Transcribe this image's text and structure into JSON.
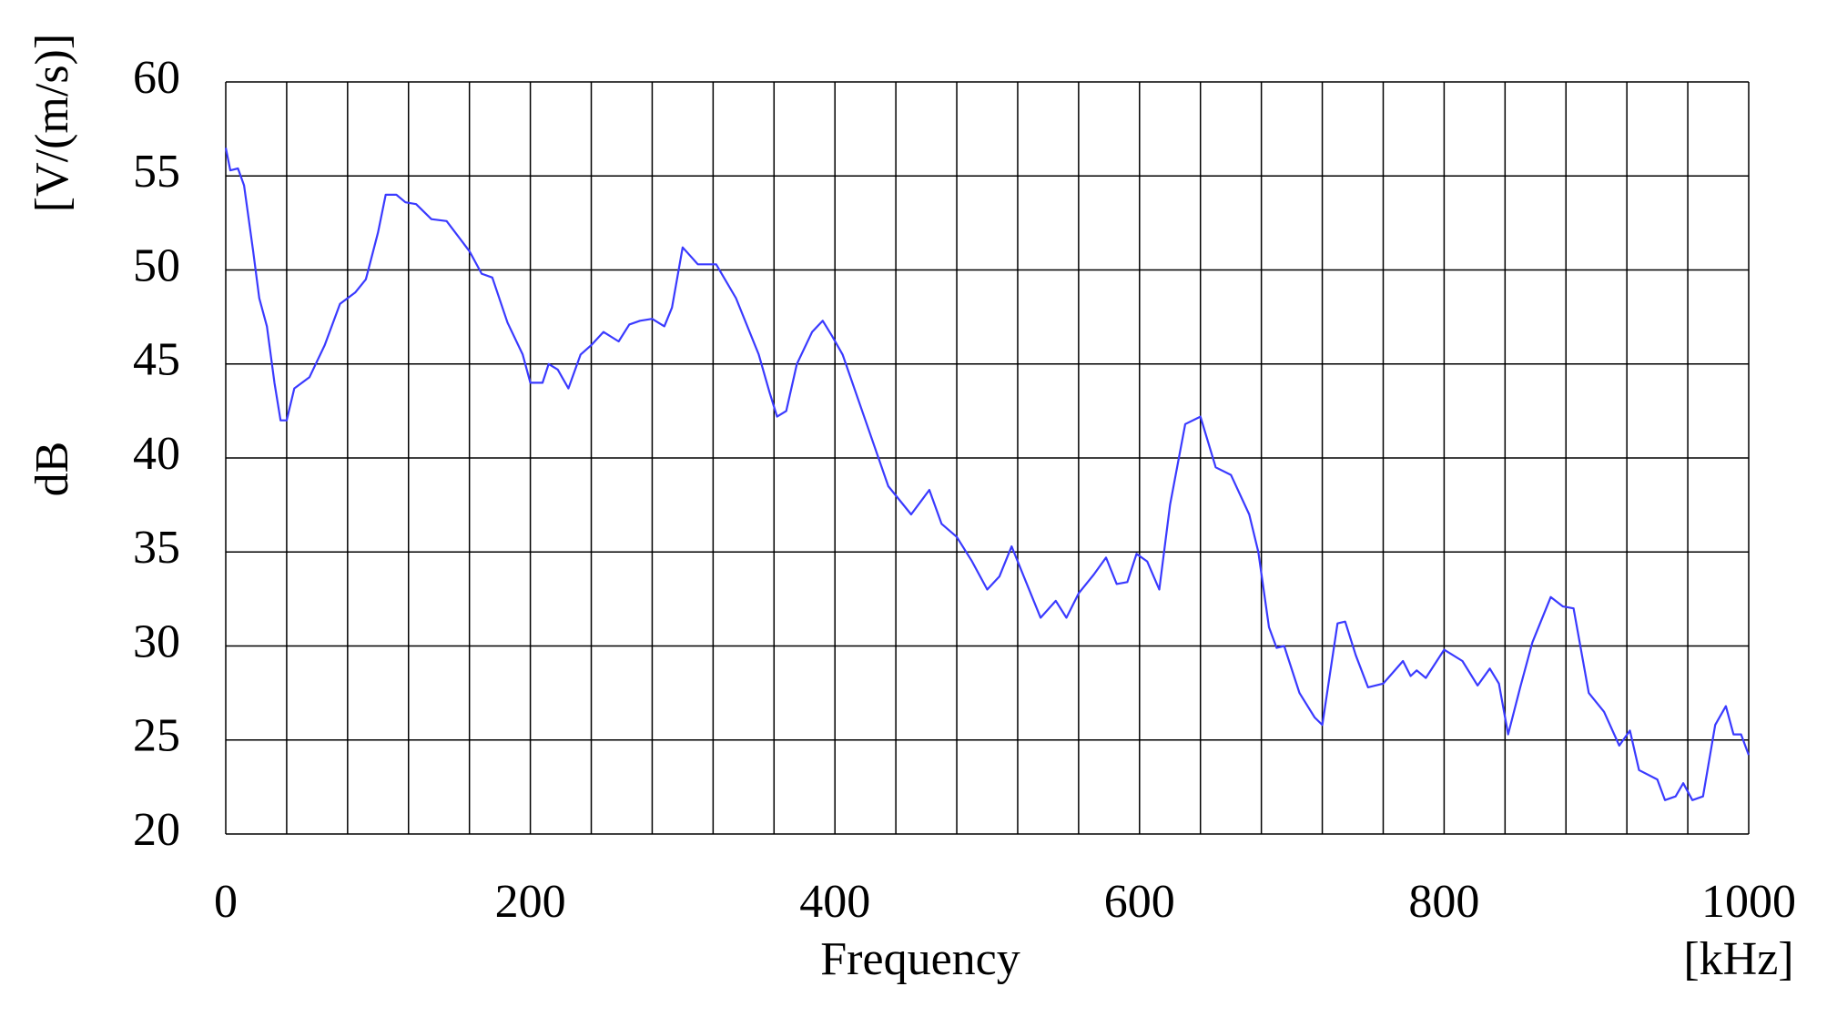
{
  "chart_data": {
    "type": "line",
    "x_label": "Frequency",
    "x_unit": "[kHz]",
    "y_label": "dB",
    "y_unit": "[V/(m/s)]",
    "xlim": [
      0,
      1000
    ],
    "xticks": [
      0,
      200,
      400,
      600,
      800,
      1000
    ],
    "xgrid": [
      0,
      40,
      80,
      120,
      160,
      200,
      240,
      280,
      320,
      360,
      400,
      440,
      480,
      520,
      560,
      600,
      640,
      680,
      720,
      760,
      800,
      840,
      880,
      920,
      960,
      1000
    ],
    "ylim": [
      20,
      60
    ],
    "yticks": [
      20,
      25,
      30,
      35,
      40,
      45,
      50,
      55,
      60
    ],
    "grid": true,
    "series": [
      {
        "color": "#3a3aff",
        "x": [
          0,
          3,
          8,
          12,
          18,
          22,
          27,
          32,
          36,
          40,
          45,
          55,
          65,
          75,
          85,
          92,
          100,
          105,
          112,
          118,
          125,
          135,
          145,
          160,
          168,
          175,
          185,
          195,
          200,
          208,
          212,
          218,
          225,
          233,
          240,
          248,
          258,
          265,
          272,
          280,
          288,
          293,
          300,
          310,
          322,
          335,
          350,
          357,
          362,
          368,
          375,
          385,
          392,
          398,
          405,
          420,
          435,
          450,
          462,
          470,
          480,
          490,
          500,
          508,
          516,
          525,
          535,
          545,
          552,
          560,
          570,
          578,
          585,
          592,
          598,
          605,
          613,
          620,
          630,
          640,
          650,
          660,
          672,
          678,
          685,
          690,
          695,
          705,
          715,
          720,
          730,
          735,
          742,
          750,
          760,
          773,
          778,
          782,
          788,
          800,
          812,
          822,
          830,
          836,
          842,
          850,
          858,
          870,
          878,
          885,
          895,
          905,
          915,
          922,
          928,
          940,
          945,
          952,
          957,
          963,
          970,
          978,
          985,
          990,
          995,
          1000
        ],
        "values": [
          56.5,
          55.3,
          55.4,
          54.5,
          51,
          48.5,
          47,
          44,
          42,
          42,
          43.7,
          44.3,
          46,
          48.2,
          48.8,
          49.5,
          52,
          54,
          54,
          53.6,
          53.5,
          52.7,
          52.6,
          51,
          49.8,
          49.6,
          47.2,
          45.5,
          44,
          44,
          45,
          44.7,
          43.7,
          45.5,
          46,
          46.7,
          46.2,
          47.1,
          47.3,
          47.4,
          47,
          48,
          51.2,
          50.3,
          50.3,
          48.5,
          45.5,
          43.5,
          42.2,
          42.5,
          45,
          46.7,
          47.3,
          46.5,
          45.5,
          42,
          38.5,
          37,
          38.3,
          36.5,
          35.8,
          34.5,
          33,
          33.7,
          35.3,
          33.5,
          31.5,
          32.4,
          31.5,
          32.8,
          33.8,
          34.7,
          33.3,
          33.4,
          34.9,
          34.5,
          33,
          37.5,
          41.8,
          42.2,
          39.5,
          39.1,
          37,
          35,
          31,
          29.9,
          30,
          27.5,
          26.2,
          25.8,
          31.2,
          31.3,
          29.5,
          27.8,
          28,
          29.2,
          28.4,
          28.7,
          28.3,
          29.8,
          29.2,
          27.9,
          28.8,
          28,
          25.3,
          27.8,
          30.2,
          32.6,
          32.1,
          32,
          27.5,
          26.5,
          24.7,
          25.5,
          23.4,
          22.9,
          21.8,
          22,
          22.7,
          21.8,
          22,
          25.8,
          26.8,
          25.3,
          25.3,
          24.2
        ]
      }
    ]
  }
}
